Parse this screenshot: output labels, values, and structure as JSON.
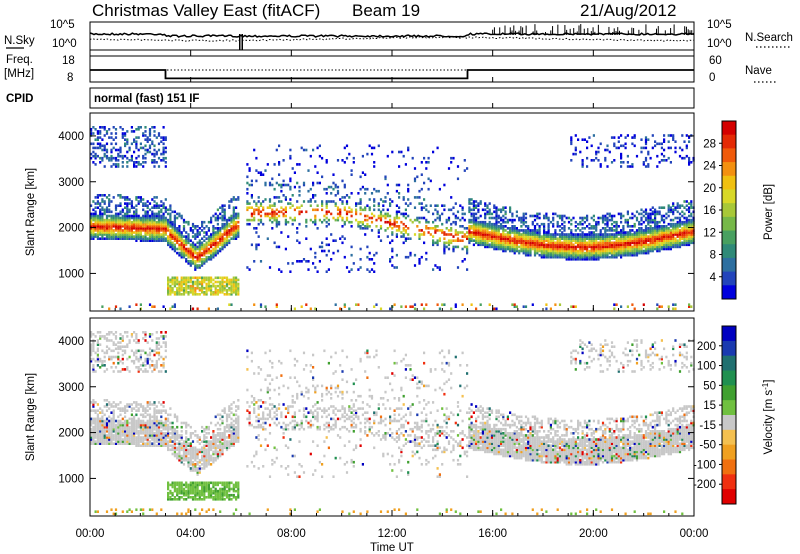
{
  "header": {
    "radar": "Christmas Valley East (fitACF)",
    "beam": "Beam 19",
    "date": "21/Aug/2012"
  },
  "noise_panel": {
    "left_label": "N.Sky",
    "left_ticks": [
      "10^5",
      "10^0"
    ],
    "right_ticks": [
      "10^5",
      "10^0"
    ],
    "right_label": "N.Search"
  },
  "freq_panel": {
    "left_label_1": "Freq.",
    "left_label_2": "[MHz]",
    "left_ticks": [
      "18",
      "8"
    ],
    "right_ticks": [
      "60",
      "0"
    ],
    "right_label": "Nave"
  },
  "cpid": {
    "label": "CPID",
    "mode": "normal (fast) 151 IF"
  },
  "chart_data": [
    {
      "type": "heatmap",
      "panel": "power",
      "ylabel": "Slant Range [km]",
      "yticks": [
        "4000",
        "3000",
        "2000",
        "1000"
      ],
      "ylim": [
        180,
        4500
      ],
      "x_range_hours": [
        0,
        24
      ],
      "colorbar": {
        "label": "Power [dB]",
        "ticks": [
          "28",
          "24",
          "20",
          "16",
          "12",
          "8",
          "4"
        ],
        "range": [
          0,
          30
        ],
        "colors": [
          "#0000dd",
          "#2244bb",
          "#2d6fa0",
          "#2f8a78",
          "#48a060",
          "#76b848",
          "#a8c838",
          "#d8d828",
          "#f0c010",
          "#f39010",
          "#f05a0a",
          "#e42a05",
          "#d40000"
        ]
      },
      "bands_km": [
        {
          "from_h": 0.0,
          "to_h": 3.0,
          "center_km": 2000,
          "feature": "strong ionospheric scatter"
        },
        {
          "from_h": 0.0,
          "to_h": 3.0,
          "center_km": 3700,
          "feature": "weak far-range scatter"
        },
        {
          "from_h": 3.0,
          "to_h": 6.0,
          "center_km": 1300,
          "feature": "descending then rising echo band"
        },
        {
          "from_h": 3.0,
          "to_h": 6.0,
          "center_km": 650,
          "feature": "ground scatter"
        },
        {
          "from_h": 6.0,
          "to_h": 15.0,
          "center_km": 2500,
          "feature": "patchy scatter"
        },
        {
          "from_h": 15.0,
          "to_h": 24.0,
          "center_km": 1850,
          "feature": "strong ionospheric scatter"
        }
      ]
    },
    {
      "type": "heatmap",
      "panel": "velocity",
      "ylabel": "Slant Range [km]",
      "yticks": [
        "4000",
        "3000",
        "2000",
        "1000"
      ],
      "ylim": [
        180,
        4500
      ],
      "x_range_hours": [
        0,
        24
      ],
      "colorbar": {
        "label": "Velocity [m s^-1]",
        "ticks": [
          "200",
          "100",
          "50",
          "15",
          "-15",
          "-50",
          "-100",
          "-200"
        ],
        "range": [
          -250,
          250
        ],
        "colors": [
          "#e00000",
          "#f03010",
          "#f07010",
          "#f0a020",
          "#f4c050",
          "#c8c8c8",
          "#70c040",
          "#40a030",
          "#209050",
          "#207070",
          "#1a3ab0",
          "#0000c0"
        ]
      },
      "bands_km": [
        {
          "from_h": 0.0,
          "to_h": 3.0,
          "center_km": 2000,
          "feature": "low velocity (grey)"
        },
        {
          "from_h": 3.0,
          "to_h": 6.0,
          "center_km": 1300,
          "feature": "low velocity (grey)"
        },
        {
          "from_h": 3.0,
          "to_h": 6.0,
          "center_km": 700,
          "feature": "positive velocity (green)"
        },
        {
          "from_h": 15.0,
          "to_h": 24.0,
          "center_km": 2000,
          "feature": "low velocity (grey)"
        }
      ]
    }
  ],
  "x_axis": {
    "ticks": [
      "00:00",
      "04:00",
      "08:00",
      "12:00",
      "16:00",
      "20:00",
      "00:00"
    ],
    "label": "Time UT"
  }
}
